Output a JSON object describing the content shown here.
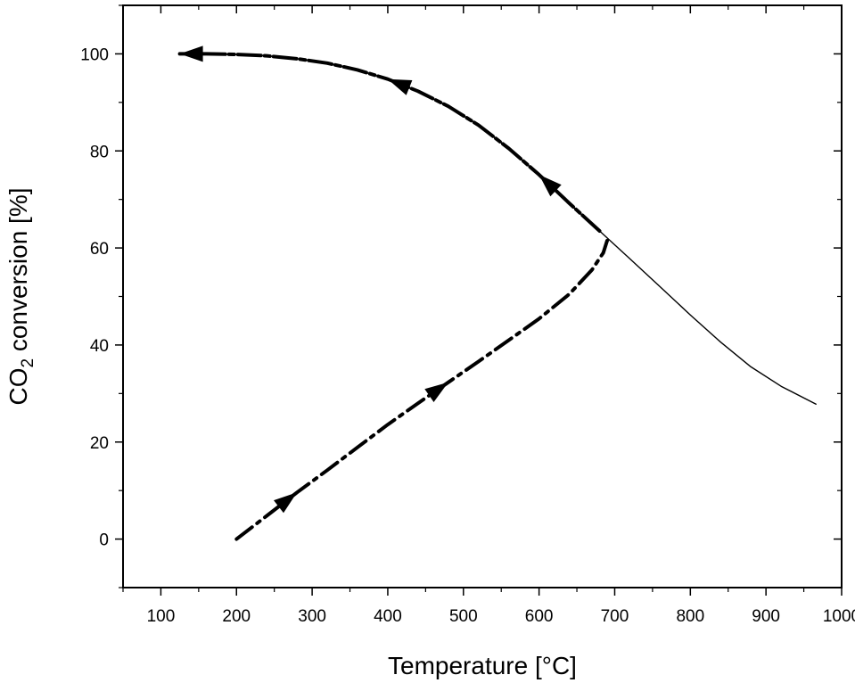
{
  "chart_data": {
    "type": "line",
    "xlabel": "Temperature [°C]",
    "ylabel": {
      "prefix": "CO",
      "subscript": "2",
      "suffix": " conversion [%]"
    },
    "xlim": [
      50,
      1000
    ],
    "ylim": [
      -10,
      110
    ],
    "x_ticks": [
      100,
      200,
      300,
      400,
      500,
      600,
      700,
      800,
      900,
      1000
    ],
    "y_ticks": [
      0,
      20,
      40,
      60,
      80,
      100
    ],
    "grid": false,
    "series": [
      {
        "style": "solid-thin",
        "x": [
          125,
          160,
          200,
          240,
          280,
          320,
          360,
          400,
          440,
          480,
          520,
          560,
          600,
          640,
          680,
          720,
          760,
          800,
          840,
          880,
          920,
          966
        ],
        "y": [
          100,
          100,
          99.9,
          99.6,
          99.0,
          98.1,
          96.7,
          94.8,
          92.3,
          89.2,
          85.3,
          80.5,
          75.1,
          69.2,
          63.5,
          57.8,
          52.0,
          46.2,
          40.6,
          35.5,
          31.5,
          27.8
        ]
      },
      {
        "style": "dashed-thick",
        "direction": "decreasing-x",
        "x": [
          680,
          640,
          600,
          560,
          520,
          480,
          440,
          400,
          360,
          320,
          280,
          240,
          200,
          160,
          125
        ],
        "y": [
          63.5,
          69.2,
          75.1,
          80.5,
          85.3,
          89.2,
          92.3,
          94.8,
          96.7,
          98.1,
          99.0,
          99.6,
          99.9,
          100,
          100
        ]
      },
      {
        "style": "dash-dot-thick",
        "direction": "increasing-x",
        "x": [
          200,
          240,
          280,
          320,
          360,
          400,
          440,
          480,
          520,
          560,
          600,
          640,
          670,
          685,
          690
        ],
        "y": [
          0,
          4.8,
          9.6,
          14.2,
          18.9,
          23.6,
          28.0,
          32.3,
          36.6,
          41.0,
          45.4,
          50.5,
          55.5,
          59.0,
          61.5
        ]
      }
    ]
  }
}
